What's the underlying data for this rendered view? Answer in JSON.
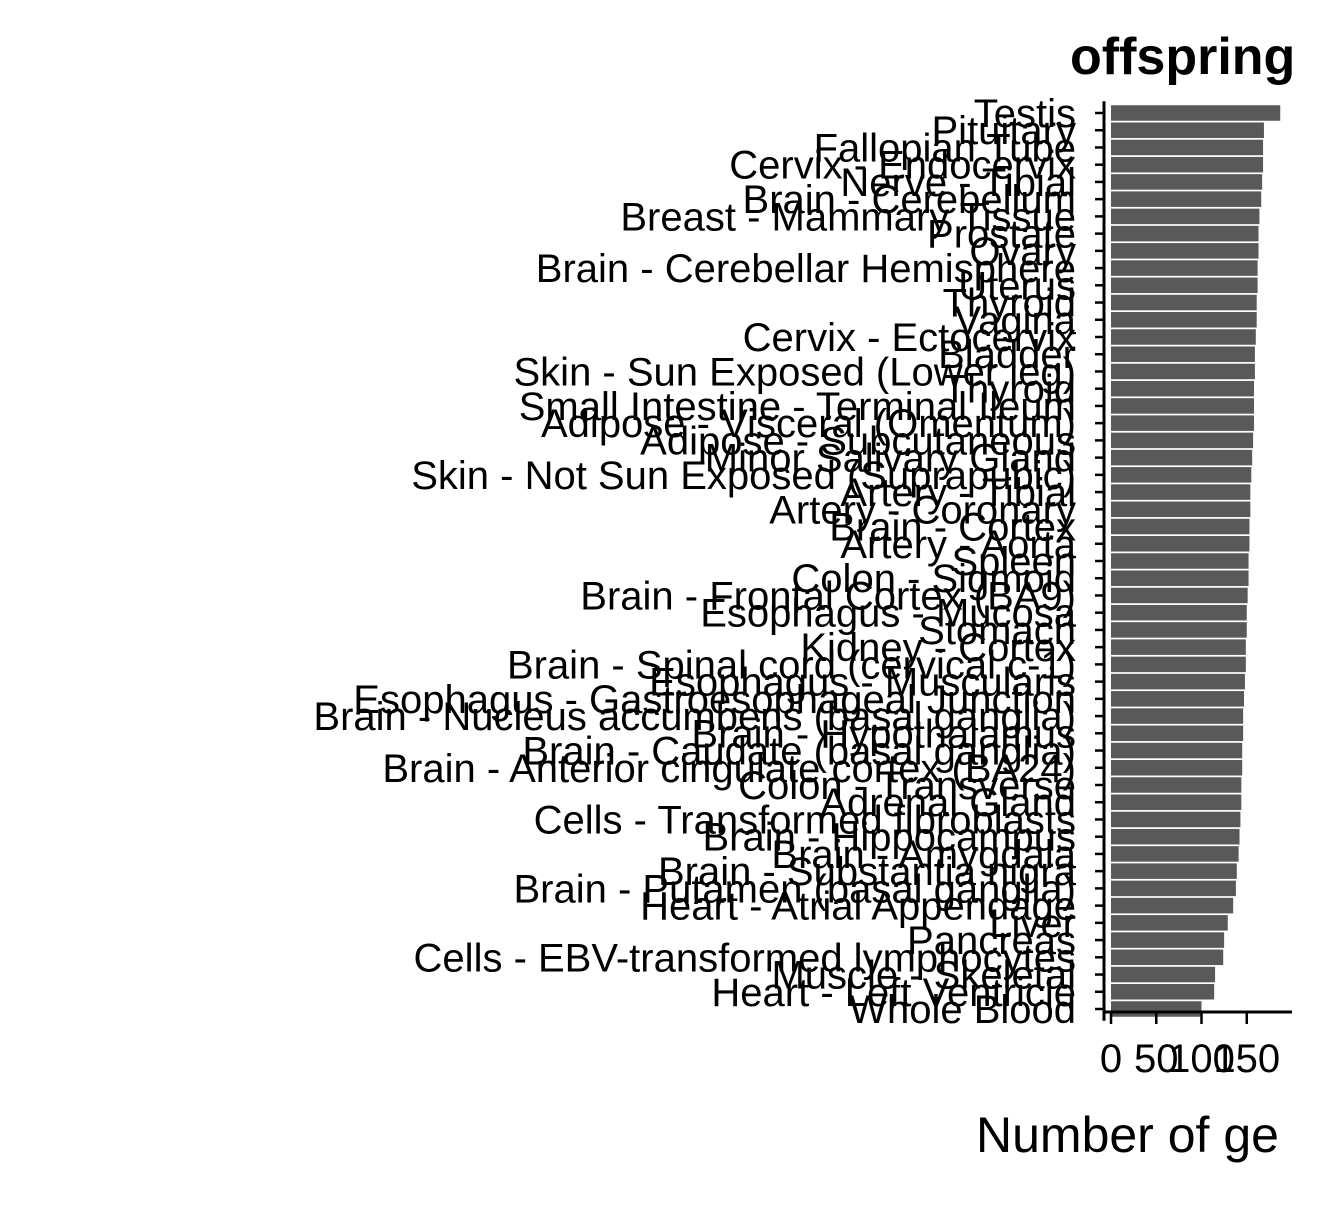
{
  "chart_data": {
    "type": "bar",
    "orientation": "horizontal",
    "title": "offspring",
    "xlabel": "Number of ge",
    "ylabel": "",
    "xlim": [
      0,
      200
    ],
    "x_ticks": [
      "0",
      "50",
      "100",
      "150"
    ],
    "x_tick_values": [
      0,
      50,
      100,
      150
    ],
    "grid": false,
    "bar_color": "#595959",
    "categories": [
      "Testis",
      "Pituitary",
      "Fallopian Tube",
      "Cervix - Endocervix",
      "Nerve - Tibial",
      "Brain - Cerebellum",
      "Breast - Mammary Tissue",
      "Prostate",
      "Ovary",
      "Brain - Cerebellar Hemisphere",
      "Uterus",
      "Thyroid",
      "Vagina",
      "Cervix - Ectocervix",
      "Bladder",
      "Skin - Sun Exposed (Lower leg)",
      "Thyroid ",
      "Small Intestine - Terminal Ileum",
      "Adipose - Visceral (Omentum)",
      "Adipose - Subcutaneous",
      "Minor Salivary Gland",
      "Skin - Not Sun Exposed (Suprapubic)",
      "Artery - Tibial",
      "Artery - Coronary",
      "Brain - Cortex",
      "Artery - Aorta",
      "Spleen",
      "Colon - Sigmoid",
      "Brain - Frontal Cortex (BA9)",
      "Esophagus - Mucosa",
      "Stomach",
      "Kidney - Cortex",
      "Brain - Spinal cord (cervical c-1)",
      "Esophagus - Muscularis",
      "Esophagus - Gastroesophageal Junction",
      "Brain - Nucleus accumbens (basal ganglia)",
      "Brain - Hypothalamus",
      "Brain - Caudate (basal ganglia)",
      "Brain - Anterior cingulate cortex (BA24)",
      "Colon - Transverse",
      "Adrenal Gland",
      "Cells - Transformed fibroblasts",
      "Brain - Hippocampus",
      "Brain - Amygdala",
      "Brain - Substantia nigra",
      "Brain - Putamen (basal ganglia)",
      "Heart - Atrial Appendage",
      "Liver",
      "Pancreas",
      "Cells - EBV-transformed lymphocytes",
      "Muscle - Skeletal",
      "Heart - Left Ventricle",
      "Whole Blood"
    ],
    "values": [
      187,
      169,
      168,
      168,
      167,
      166,
      164,
      163,
      163,
      162,
      162,
      161,
      161,
      160,
      159,
      159,
      158,
      158,
      158,
      157,
      156,
      155,
      154,
      154,
      153,
      153,
      152,
      152,
      151,
      150,
      150,
      149,
      149,
      148,
      147,
      146,
      146,
      145,
      145,
      144,
      144,
      143,
      142,
      141,
      139,
      138,
      135,
      129,
      125,
      124,
      115,
      114,
      100
    ]
  }
}
